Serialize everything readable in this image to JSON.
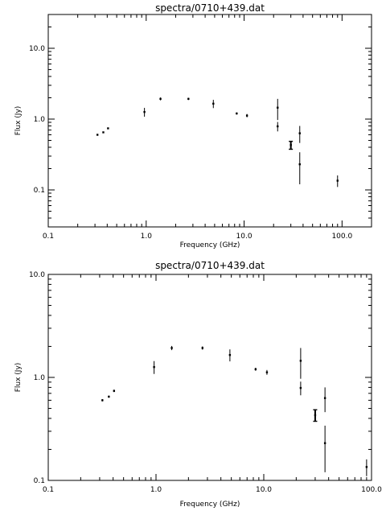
{
  "chart_data": [
    {
      "type": "scatter",
      "title": "spectra/0710+439.dat",
      "xlabel": "Frequency (GHz)",
      "ylabel": "Flux (Jy)",
      "xscale": "log",
      "yscale": "log",
      "xlim": [
        0.1,
        200
      ],
      "ylim": [
        0.03,
        30
      ],
      "grid": false,
      "xticks": [
        "0.1",
        "1.0",
        "10.0",
        "100.0"
      ],
      "yticks": [
        "0.1",
        "1.0",
        "10.0"
      ],
      "points": [
        {
          "x": 0.318,
          "y": 0.6,
          "err": 0.015
        },
        {
          "x": 0.365,
          "y": 0.65,
          "err": 0.015
        },
        {
          "x": 0.408,
          "y": 0.74,
          "err": 0.02
        },
        {
          "x": 0.96,
          "y": 1.26,
          "err": 0.18
        },
        {
          "x": 1.4,
          "y": 1.93,
          "err": 0.09
        },
        {
          "x": 2.7,
          "y": 1.93,
          "err": 0.07
        },
        {
          "x": 4.85,
          "y": 1.65,
          "err": 0.22
        },
        {
          "x": 8.4,
          "y": 1.2,
          "err": 0.04
        },
        {
          "x": 10.7,
          "y": 1.12,
          "err": 0.06
        },
        {
          "x": 22,
          "y": 1.45,
          "err": 0.48
        },
        {
          "x": 22,
          "y": 0.79,
          "err": 0.12
        },
        {
          "x": 30,
          "y": 0.43,
          "err": 0.055
        },
        {
          "x": 37,
          "y": 0.63,
          "err": 0.17
        },
        {
          "x": 37,
          "y": 0.23,
          "err": 0.11
        },
        {
          "x": 90,
          "y": 0.135,
          "err": 0.025
        }
      ]
    },
    {
      "type": "scatter",
      "title": "spectra/0710+439.dat",
      "xlabel": "Frequency (GHz)",
      "ylabel": "Flux (Jy)",
      "xscale": "log",
      "yscale": "log",
      "xlim": [
        0.1,
        100
      ],
      "ylim": [
        0.1,
        10
      ],
      "grid": false,
      "xticks": [
        "0.1",
        "1.0",
        "10.0",
        "100.0"
      ],
      "yticks": [
        "0.1",
        "1.0",
        "10.0"
      ],
      "points": [
        {
          "x": 0.318,
          "y": 0.6,
          "err": 0.015
        },
        {
          "x": 0.365,
          "y": 0.65,
          "err": 0.015
        },
        {
          "x": 0.408,
          "y": 0.74,
          "err": 0.02
        },
        {
          "x": 0.96,
          "y": 1.26,
          "err": 0.18
        },
        {
          "x": 1.4,
          "y": 1.93,
          "err": 0.09
        },
        {
          "x": 2.7,
          "y": 1.93,
          "err": 0.07
        },
        {
          "x": 4.85,
          "y": 1.65,
          "err": 0.22
        },
        {
          "x": 8.4,
          "y": 1.2,
          "err": 0.04
        },
        {
          "x": 10.7,
          "y": 1.12,
          "err": 0.06
        },
        {
          "x": 22,
          "y": 1.45,
          "err": 0.48
        },
        {
          "x": 22,
          "y": 0.79,
          "err": 0.12
        },
        {
          "x": 30,
          "y": 0.43,
          "err": 0.055
        },
        {
          "x": 37,
          "y": 0.63,
          "err": 0.17
        },
        {
          "x": 37,
          "y": 0.23,
          "err": 0.11
        },
        {
          "x": 90,
          "y": 0.135,
          "err": 0.025
        }
      ]
    }
  ]
}
